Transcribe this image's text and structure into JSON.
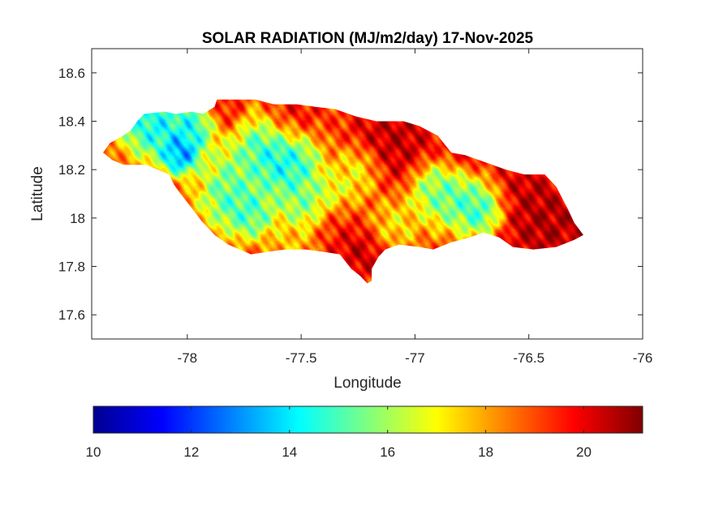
{
  "chart_data": {
    "type": "heatmap",
    "title": "SOLAR RADIATION (MJ/m2/day) 17-Nov-2025",
    "xlabel": "Longitude",
    "ylabel": "Latitude",
    "xlim": [
      -78.42,
      -76.0
    ],
    "ylim": [
      17.5,
      18.7
    ],
    "xticks": [
      -78,
      -77.5,
      -77,
      -76.5,
      -76
    ],
    "xtick_labels": [
      "-78",
      "-77.5",
      "-77",
      "-76.5",
      "-76"
    ],
    "yticks": [
      17.6,
      17.8,
      18,
      18.2,
      18.4,
      18.6
    ],
    "ytick_labels": [
      "17.6",
      "17.8",
      "18",
      "18.2",
      "18.4",
      "18.6"
    ],
    "colormap": "jet",
    "colorbar": {
      "position": "bottom",
      "range": [
        10,
        21.2
      ],
      "ticks": [
        10,
        12,
        14,
        16,
        18,
        20
      ],
      "tick_labels": [
        "10",
        "12",
        "14",
        "16",
        "18",
        "20"
      ]
    },
    "grid": false,
    "region_outline_lonlat": [
      [
        -78.37,
        18.27
      ],
      [
        -78.34,
        18.31
      ],
      [
        -78.3,
        18.33
      ],
      [
        -78.25,
        18.36
      ],
      [
        -78.22,
        18.4
      ],
      [
        -78.19,
        18.43
      ],
      [
        -78.1,
        18.44
      ],
      [
        -78.05,
        18.43
      ],
      [
        -77.98,
        18.44
      ],
      [
        -77.93,
        18.43
      ],
      [
        -77.88,
        18.46
      ],
      [
        -77.87,
        18.49
      ],
      [
        -77.78,
        18.49
      ],
      [
        -77.7,
        18.49
      ],
      [
        -77.62,
        18.47
      ],
      [
        -77.52,
        18.47
      ],
      [
        -77.44,
        18.46
      ],
      [
        -77.35,
        18.45
      ],
      [
        -77.26,
        18.42
      ],
      [
        -77.17,
        18.4
      ],
      [
        -77.05,
        18.4
      ],
      [
        -76.98,
        18.38
      ],
      [
        -76.9,
        18.34
      ],
      [
        -76.84,
        18.27
      ],
      [
        -76.78,
        18.26
      ],
      [
        -76.72,
        18.24
      ],
      [
        -76.6,
        18.2
      ],
      [
        -76.52,
        18.18
      ],
      [
        -76.43,
        18.18
      ],
      [
        -76.38,
        18.13
      ],
      [
        -76.33,
        18.04
      ],
      [
        -76.3,
        17.98
      ],
      [
        -76.26,
        17.93
      ],
      [
        -76.3,
        17.91
      ],
      [
        -76.38,
        17.88
      ],
      [
        -76.48,
        17.87
      ],
      [
        -76.57,
        17.88
      ],
      [
        -76.63,
        17.92
      ],
      [
        -76.7,
        17.94
      ],
      [
        -76.76,
        17.92
      ],
      [
        -76.84,
        17.9
      ],
      [
        -76.92,
        17.87
      ],
      [
        -76.98,
        17.88
      ],
      [
        -77.07,
        17.89
      ],
      [
        -77.13,
        17.87
      ],
      [
        -77.16,
        17.84
      ],
      [
        -77.19,
        17.79
      ],
      [
        -77.19,
        17.74
      ],
      [
        -77.21,
        17.73
      ],
      [
        -77.24,
        17.76
      ],
      [
        -77.28,
        17.79
      ],
      [
        -77.33,
        17.85
      ],
      [
        -77.4,
        17.86
      ],
      [
        -77.48,
        17.87
      ],
      [
        -77.57,
        17.87
      ],
      [
        -77.65,
        17.86
      ],
      [
        -77.72,
        17.85
      ],
      [
        -77.77,
        17.87
      ],
      [
        -77.82,
        17.89
      ],
      [
        -77.88,
        17.93
      ],
      [
        -77.94,
        17.99
      ],
      [
        -77.98,
        18.04
      ],
      [
        -78.03,
        18.1
      ],
      [
        -78.06,
        18.14
      ],
      [
        -78.08,
        18.18
      ],
      [
        -78.13,
        18.2
      ],
      [
        -78.18,
        18.22
      ],
      [
        -78.23,
        18.22
      ],
      [
        -78.28,
        18.22
      ],
      [
        -78.33,
        18.24
      ]
    ],
    "surface_peaks": [
      {
        "lon": -78.03,
        "lat": 18.27,
        "value": 11.2,
        "radius": 0.05
      },
      {
        "lon": -78.15,
        "lat": 18.39,
        "value": 12.8,
        "radius": 0.08
      },
      {
        "lon": -77.97,
        "lat": 18.39,
        "value": 13.3,
        "radius": 0.06
      },
      {
        "lon": -77.63,
        "lat": 18.28,
        "value": 13.2,
        "radius": 0.09
      },
      {
        "lon": -77.55,
        "lat": 18.21,
        "value": 13.6,
        "radius": 0.07
      },
      {
        "lon": -77.82,
        "lat": 18.08,
        "value": 14.0,
        "radius": 0.07
      },
      {
        "lon": -77.72,
        "lat": 18.02,
        "value": 14.0,
        "radius": 0.06
      },
      {
        "lon": -77.8,
        "lat": 18.18,
        "value": 15.2,
        "radius": 0.07
      },
      {
        "lon": -77.5,
        "lat": 18.06,
        "value": 14.8,
        "radius": 0.06
      },
      {
        "lon": -77.38,
        "lat": 18.08,
        "value": 15.6,
        "radius": 0.06
      },
      {
        "lon": -77.25,
        "lat": 18.2,
        "value": 16.2,
        "radius": 0.06
      },
      {
        "lon": -76.82,
        "lat": 18.1,
        "value": 14.0,
        "radius": 0.08
      },
      {
        "lon": -76.7,
        "lat": 18.03,
        "value": 12.7,
        "radius": 0.06
      },
      {
        "lon": -76.92,
        "lat": 18.12,
        "value": 15.2,
        "radius": 0.06
      },
      {
        "lon": -77.08,
        "lat": 17.98,
        "value": 16.8,
        "radius": 0.06
      },
      {
        "lon": -77.98,
        "lat": 18.0,
        "value": 17.0,
        "radius": 0.06
      },
      {
        "lon": -77.55,
        "lat": 17.9,
        "value": 17.2,
        "radius": 0.05
      },
      {
        "lon": -77.55,
        "lat": 18.42,
        "value": 20.6,
        "radius": 0.07
      },
      {
        "lon": -77.1,
        "lat": 18.32,
        "value": 21.0,
        "radius": 0.1
      },
      {
        "lon": -76.78,
        "lat": 18.28,
        "value": 20.8,
        "radius": 0.07
      },
      {
        "lon": -76.5,
        "lat": 18.05,
        "value": 21.0,
        "radius": 0.12
      },
      {
        "lon": -76.4,
        "lat": 17.96,
        "value": 21.0,
        "radius": 0.08
      },
      {
        "lon": -77.25,
        "lat": 17.85,
        "value": 20.8,
        "radius": 0.06
      },
      {
        "lon": -77.85,
        "lat": 18.45,
        "value": 20.0,
        "radius": 0.05
      },
      {
        "lon": -77.35,
        "lat": 18.0,
        "value": 20.2,
        "radius": 0.05
      }
    ],
    "surface_background": 19.0
  }
}
